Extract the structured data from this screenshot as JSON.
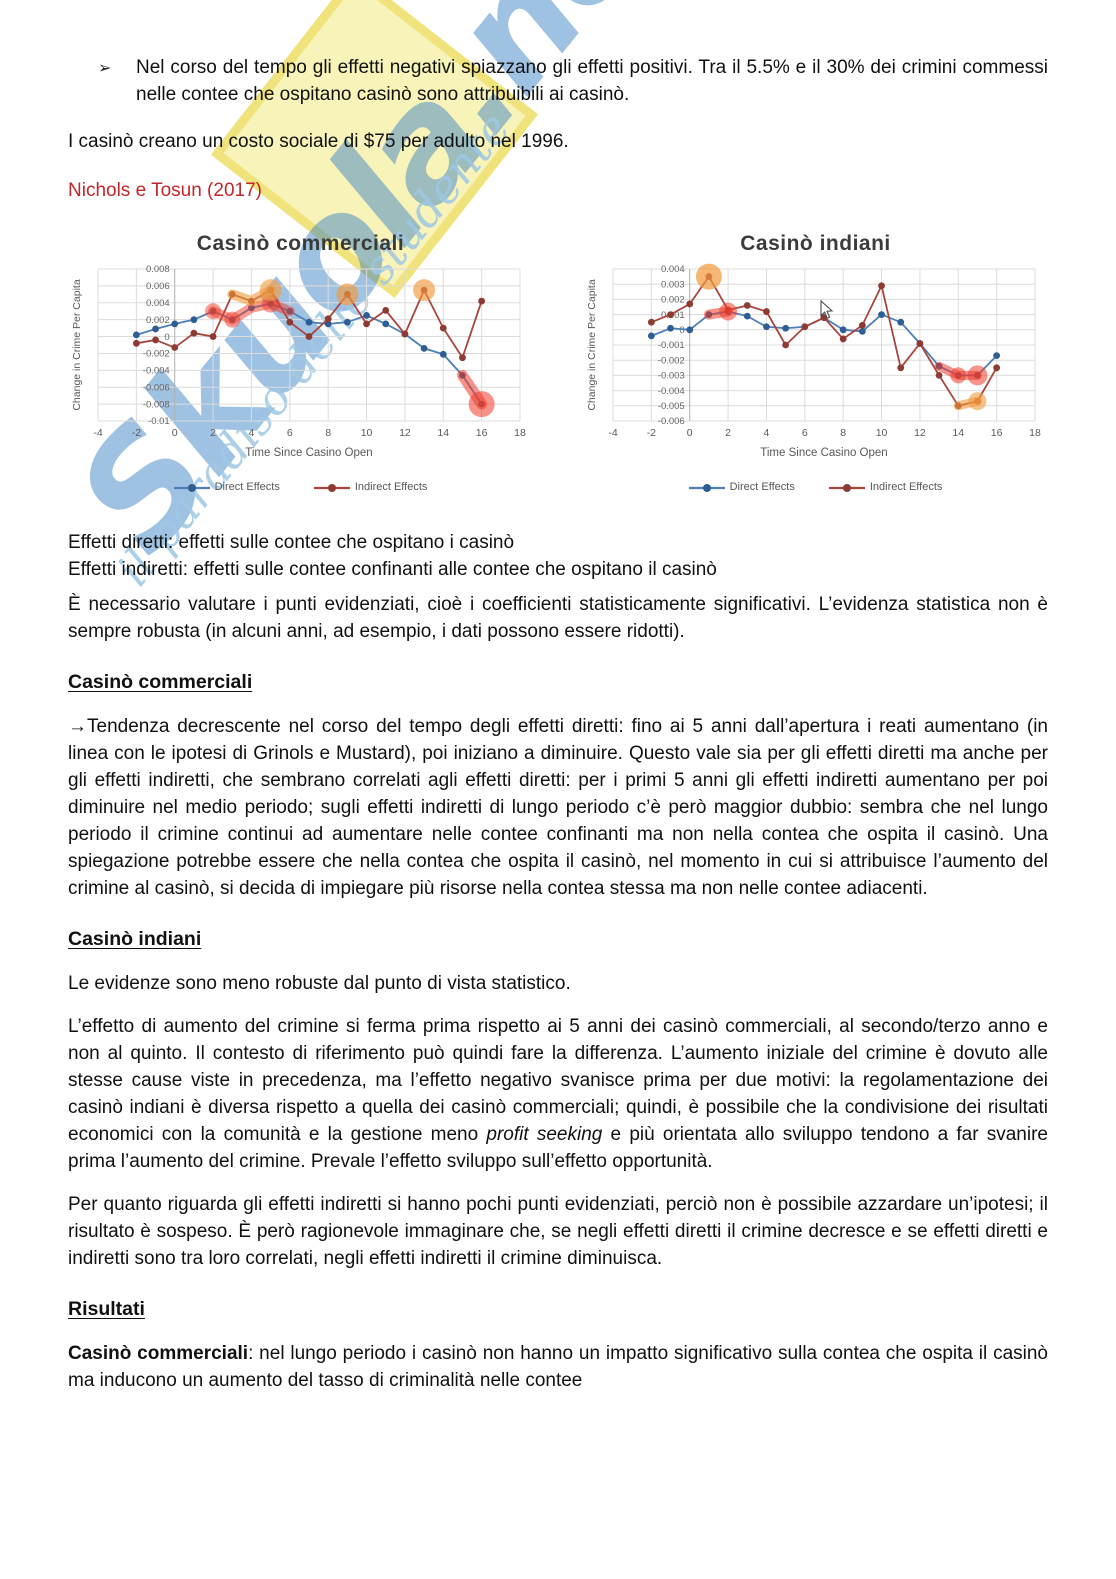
{
  "watermark": {
    "name": "Skuola.net",
    "tagline": "il paradiso dello studente"
  },
  "bullets": {
    "glyph": "➢",
    "item1": "Nel corso del tempo gli effetti negativi spiazzano gli effetti positivi. Tra il 5.5% e il 30% dei crimini commessi nelle contee che ospitano casinò sono attribuibili ai casinò."
  },
  "intro": {
    "social_cost": "I casinò creano un costo sociale di $75 per adulto nel 1996.",
    "citation": "Nichols e Tosun (2017)"
  },
  "definitions": {
    "direct": "Effetti diretti: effetti sulle contee che ospitano i casinò",
    "indirect": "Effetti indiretti: effetti sulle contee confinanti alle contee che ospitano il casinò"
  },
  "headings": {
    "commercial": "Casinò commerciali",
    "indian": "Casinò indiani",
    "results": "Risultati"
  },
  "paragraphs": {
    "evaluate": "È necessario valutare i punti evidenziati, cioè i coefficienti statisticamente significativi. L’evidenza statistica non è sempre robusta (in alcuni anni, ad esempio, i dati possono essere ridotti).",
    "commercial_analysis": "→Tendenza decrescente nel corso del tempo degli effetti diretti: fino ai 5 anni dall’apertura i reati aumentano (in linea con le ipotesi di Grinols e Mustard), poi iniziano a diminuire. Questo vale sia per gli effetti diretti ma anche per gli effetti indiretti, che sembrano correlati agli effetti diretti: per i primi 5 anni gli effetti indiretti aumentano per poi diminuire nel medio periodo; sugli effetti indiretti di lungo periodo c’è però maggior dubbio: sembra che nel lungo periodo il crimine continui ad aumentare nelle contee confinanti ma non nella contea che ospita il casinò. Una spiegazione potrebbe essere che nella contea che ospita il casinò, nel momento in cui si attribuisce l’aumento del crimine al casinò, si decida di impiegare più risorse nella contea stessa ma non nelle contee adiacenti.",
    "indian_intro": "Le evidenze sono meno robuste dal punto di vista statistico.",
    "indian_analysis_1": "L’effetto di aumento del crimine si ferma prima rispetto ai 5 anni dei casinò commerciali, al secondo/terzo anno e non al quinto. Il contesto di riferimento può quindi fare la differenza. L’aumento iniziale del crimine è dovuto alle stesse cause viste in precedenza, ma l’effetto negativo svanisce prima per due motivi: la regolamentazione dei casinò indiani è diversa rispetto a quella dei casinò commerciali; quindi, è possibile che la condivisione dei risultati economici con la comunità e la gestione meno ",
    "indian_analysis_italic": "profit seeking",
    "indian_analysis_2": " e più orientata allo sviluppo tendono a far svanire prima l’aumento del crimine. Prevale l’effetto sviluppo sull’effetto opportunità.",
    "indirect_hypothesis": "Per quanto riguarda gli effetti indiretti si hanno pochi punti evidenziati, perciò non è possibile azzardare un’ipotesi; il risultato è sospeso. È però ragionevole immaginare che, se negli effetti diretti il crimine decresce e se effetti diretti e indiretti sono tra loro correlati, negli effetti indiretti il crimine diminuisca.",
    "results_bold": "Casinò commerciali",
    "results_rest": ": nel lungo periodo i casinò non hanno un impatto significativo sulla contea che ospita il casinò ma inducono un aumento del tasso di criminalità nelle contee"
  },
  "chart_data": [
    {
      "type": "line",
      "title": "Casinò commerciali",
      "xlabel": "Time Since Casino Open",
      "ylabel": "Change in Crime Per Capita",
      "grid": true,
      "legend_position": "bottom",
      "x": [
        -2,
        -1,
        0,
        1,
        2,
        3,
        4,
        5,
        6,
        7,
        8,
        9,
        10,
        11,
        12,
        13,
        14,
        15,
        16
      ],
      "xlim": [
        -4,
        18
      ],
      "xtick_step": 2,
      "ylim": [
        -0.01,
        0.008
      ],
      "ytick_step": 0.002,
      "series": [
        {
          "name": "Direct Effects",
          "color": "#4d7fba",
          "marker_color": "#2e5e93",
          "values": [
            0.0002,
            0.0009,
            0.0015,
            0.002,
            0.003,
            0.002,
            0.0034,
            0.0039,
            0.003,
            0.0017,
            0.0015,
            0.0017,
            0.0025,
            0.0015,
            0.0003,
            -0.0014,
            -0.0021,
            -0.0046,
            -0.008
          ]
        },
        {
          "name": "Indirect Effects",
          "color": "#a8463e",
          "marker_color": "#8e3b33",
          "values": [
            -0.0008,
            -0.0004,
            -0.0013,
            0.0004,
            0,
            0.005,
            0.0042,
            0.0055,
            0.0017,
            0,
            0.0021,
            0.005,
            0.0015,
            0.0031,
            0.0003,
            0.0055,
            0.001,
            -0.0025,
            0.0042
          ]
        }
      ],
      "annotations": [
        {
          "kind": "path",
          "series": 0,
          "from_x": 2,
          "to_x": 6,
          "color": "#f03b28",
          "width": 10,
          "opacity": 0.5
        },
        {
          "kind": "circle",
          "series": 0,
          "at_x": 2,
          "r": 8,
          "color": "#f03b28",
          "opacity": 0.5
        },
        {
          "kind": "circle",
          "series": 0,
          "at_x": 3,
          "r": 8,
          "color": "#f03b28",
          "opacity": 0.5
        },
        {
          "kind": "circle",
          "series": 0,
          "at_x": 5,
          "r": 9,
          "color": "#f03b28",
          "opacity": 0.5
        },
        {
          "kind": "path",
          "series": 0,
          "from_x": 15,
          "to_x": 16,
          "color": "#f03b28",
          "width": 11,
          "opacity": 0.55
        },
        {
          "kind": "circle",
          "series": 0,
          "at_x": 16,
          "r": 13,
          "color": "#f03b28",
          "opacity": 0.55
        },
        {
          "kind": "path",
          "series": 1,
          "from_x": 3,
          "to_x": 5,
          "color": "#f2993c",
          "width": 10,
          "opacity": 0.6
        },
        {
          "kind": "circle",
          "series": 1,
          "at_x": 5,
          "r": 11,
          "color": "#f2993c",
          "opacity": 0.6
        },
        {
          "kind": "circle",
          "series": 1,
          "at_x": 9,
          "r": 11,
          "color": "#f2993c",
          "opacity": 0.65
        },
        {
          "kind": "circle",
          "series": 1,
          "at_x": 13,
          "r": 11,
          "color": "#f2993c",
          "opacity": 0.65
        }
      ]
    },
    {
      "type": "line",
      "title": "Casinò indiani",
      "xlabel": "Time Since Casino Open",
      "ylabel": "Change in Crime Per Capita",
      "grid": true,
      "legend_position": "bottom",
      "x": [
        -2,
        -1,
        0,
        1,
        2,
        3,
        4,
        5,
        6,
        7,
        8,
        9,
        10,
        11,
        12,
        13,
        14,
        15,
        16
      ],
      "xlim": [
        -4,
        18
      ],
      "xtick_step": 2,
      "ylim": [
        -0.006,
        0.004
      ],
      "ytick_step": 0.001,
      "series": [
        {
          "name": "Direct Effects",
          "color": "#4d7fba",
          "marker_color": "#2e5e93",
          "values": [
            -0.0004,
            0.0001,
            0,
            0.001,
            0.0012,
            0.0009,
            0.0002,
            0.0001,
            0.0002,
            0.0008,
            0,
            -0.0001,
            0.001,
            0.0005,
            -0.0009,
            -0.0024,
            -0.003,
            -0.003,
            -0.0017
          ]
        },
        {
          "name": "Indirect Effects",
          "color": "#a8463e",
          "marker_color": "#8e3b33",
          "values": [
            0.0005,
            0.001,
            0.0017,
            0.0035,
            0.0013,
            0.0016,
            0.0012,
            -0.001,
            0.0002,
            0.0008,
            -0.0006,
            0.0003,
            0.0029,
            -0.0025,
            -0.0009,
            -0.003,
            -0.005,
            -0.0047,
            -0.0025
          ]
        }
      ],
      "annotations": [
        {
          "kind": "path",
          "series": 0,
          "from_x": 1,
          "to_x": 2,
          "color": "#f03b28",
          "width": 10,
          "opacity": 0.55
        },
        {
          "kind": "circle",
          "series": 0,
          "at_x": 2,
          "r": 9,
          "color": "#f03b28",
          "opacity": 0.55
        },
        {
          "kind": "path",
          "series": 0,
          "from_x": 13,
          "to_x": 15,
          "color": "#f03b28",
          "width": 9,
          "opacity": 0.55
        },
        {
          "kind": "circle",
          "series": 0,
          "at_x": 14,
          "r": 8,
          "color": "#f03b28",
          "opacity": 0.55
        },
        {
          "kind": "circle",
          "series": 0,
          "at_x": 15,
          "r": 10,
          "color": "#f03b28",
          "opacity": 0.55
        },
        {
          "kind": "circle",
          "series": 1,
          "at_x": 1,
          "r": 13,
          "color": "#f2993c",
          "opacity": 0.7
        },
        {
          "kind": "path",
          "series": 1,
          "from_x": 14,
          "to_x": 15,
          "color": "#f2993c",
          "width": 9,
          "opacity": 0.6
        },
        {
          "kind": "circle",
          "series": 1,
          "at_x": 15,
          "r": 9,
          "color": "#f2993c",
          "opacity": 0.6
        }
      ]
    }
  ]
}
